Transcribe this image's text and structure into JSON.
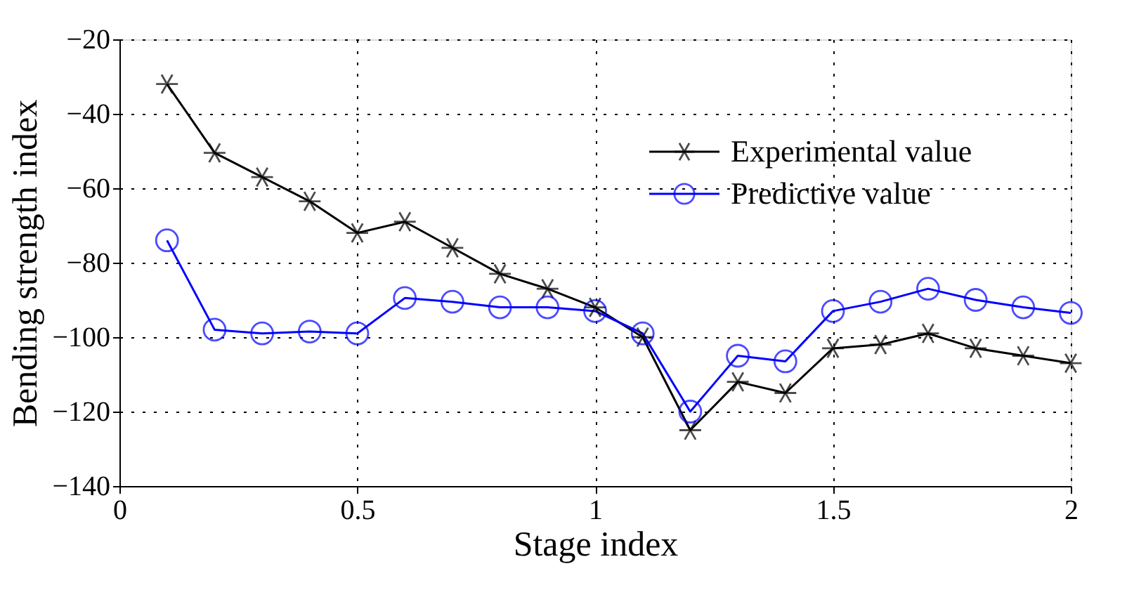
{
  "chart_data": {
    "type": "line",
    "xlabel": "Stage index",
    "ylabel": "Bending strength index",
    "x": [
      0.1,
      0.2,
      0.3,
      0.4,
      0.5,
      0.6,
      0.7,
      0.8,
      0.9,
      1.0,
      1.1,
      1.2,
      1.3,
      1.4,
      1.5,
      1.6,
      1.7,
      1.8,
      1.9,
      2.0
    ],
    "series": [
      {
        "name": "Experimental value",
        "color": "#000000",
        "marker": "cross",
        "values": [
          -32,
          -50.5,
          -57,
          -63.5,
          -72,
          -69,
          -76,
          -83,
          -87,
          -92,
          -100,
          -125,
          -112,
          -115,
          -103,
          -102,
          -99,
          -103,
          -105,
          -107
        ]
      },
      {
        "name": "Predictive value",
        "color": "#0000ff",
        "marker": "circle",
        "values": [
          -74,
          -98,
          -99,
          -98.5,
          -99,
          -89.5,
          -90.5,
          -92,
          -92,
          -93,
          -99,
          -120,
          -105,
          -106.5,
          -93,
          -90.5,
          -87,
          -90,
          -92,
          -93.5
        ]
      }
    ],
    "xlim": [
      0,
      2
    ],
    "xticks": [
      0,
      0.5,
      1,
      1.5,
      2
    ],
    "ylim": [
      -140,
      -20
    ],
    "yticks": [
      -140,
      -120,
      -100,
      -80,
      -60,
      -40,
      -20
    ],
    "grid": true,
    "legend": "top right",
    "line_style": "solid"
  }
}
